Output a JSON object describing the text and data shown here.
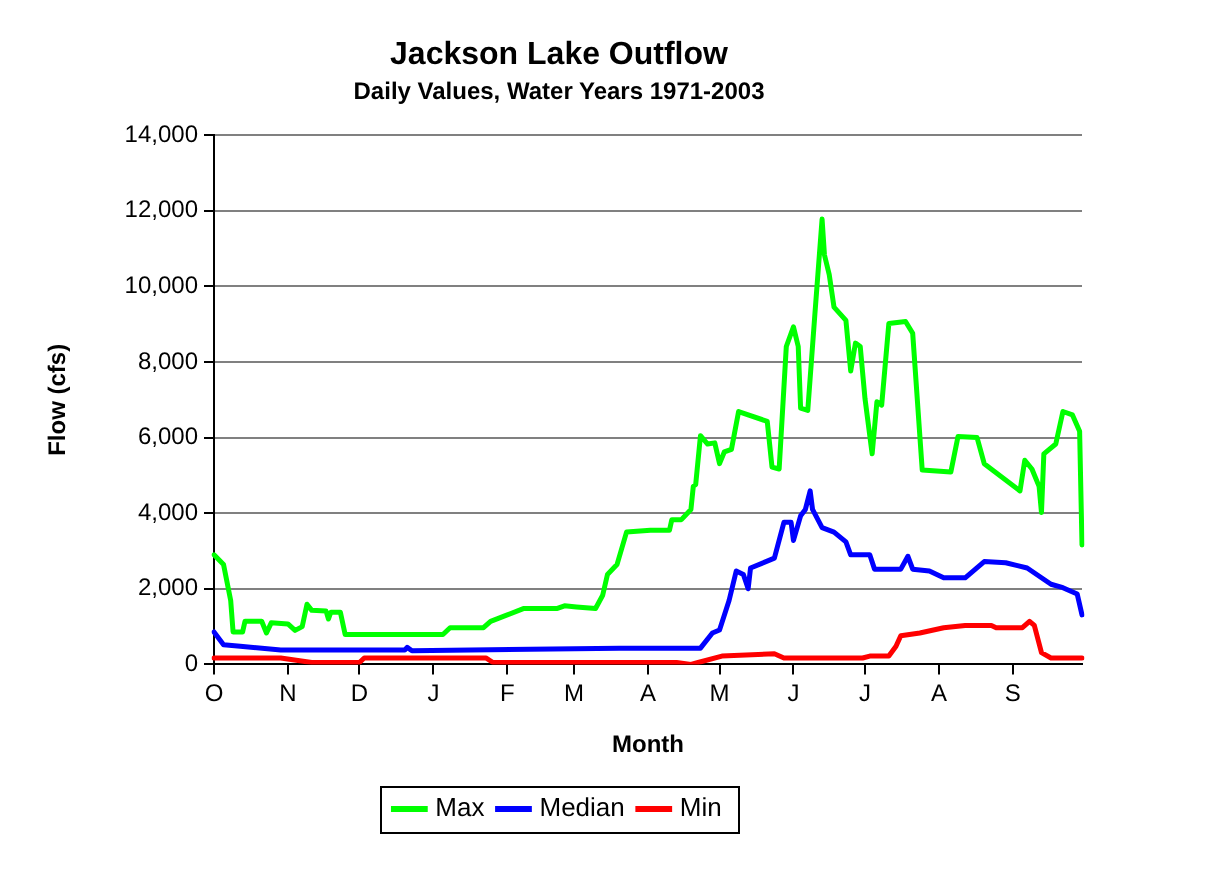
{
  "chart_data": {
    "type": "line",
    "title": "Jackson Lake Outflow",
    "subtitle": "Daily Values, Water Years 1971-2003",
    "xlabel": "Month",
    "ylabel": "Flow (cfs)",
    "categories": [
      "O",
      null,
      null,
      null,
      null,
      null,
      null,
      null,
      null,
      null,
      null,
      null,
      null,
      null,
      null,
      null,
      null,
      null,
      null,
      null,
      null,
      null,
      null,
      null,
      null,
      null,
      null,
      null,
      null,
      null,
      null,
      "N",
      null,
      null,
      null,
      null,
      null,
      null,
      null,
      null,
      null,
      null,
      null,
      null,
      null,
      null,
      null,
      null,
      null,
      null,
      null,
      null,
      null,
      null,
      null,
      null,
      null,
      null,
      null,
      null,
      null,
      "D",
      null,
      null,
      null,
      null,
      null,
      null,
      null,
      null,
      null,
      null,
      null,
      null,
      null,
      null,
      null,
      null,
      null,
      null,
      null,
      null,
      null,
      null,
      null,
      null,
      null,
      null,
      null,
      null,
      null,
      null,
      "J",
      null,
      null,
      null,
      null,
      null,
      null,
      null,
      null,
      null,
      null,
      null,
      null,
      null,
      null,
      null,
      null,
      null,
      null,
      null,
      null,
      null,
      null,
      null,
      null,
      null,
      null,
      null,
      null,
      null,
      null,
      "F",
      null,
      null,
      null,
      null,
      null,
      null,
      null,
      null,
      null,
      null,
      null,
      null,
      null,
      null,
      null,
      null,
      null,
      null,
      null,
      null,
      null,
      null,
      null,
      null,
      null,
      null,
      null,
      "M",
      null,
      null,
      null,
      null,
      null,
      null,
      null,
      null,
      null,
      null,
      null,
      null,
      null,
      null,
      null,
      null,
      null,
      null,
      null,
      null,
      null,
      null,
      null,
      null,
      null,
      null,
      null,
      null,
      null,
      null,
      "A",
      null,
      null,
      null,
      null,
      null,
      null,
      null,
      null,
      null,
      null,
      null,
      null,
      null,
      null,
      null,
      null,
      null,
      null,
      null,
      null,
      null,
      null,
      null,
      null,
      null,
      null,
      null,
      null,
      null,
      "M",
      null,
      null,
      null,
      null,
      null,
      null,
      null,
      null,
      null,
      null,
      null,
      null,
      null,
      null,
      null,
      null,
      null,
      null,
      null,
      null,
      null,
      null,
      null,
      null,
      null,
      null,
      null,
      null,
      null,
      null,
      "J",
      null,
      null,
      null,
      null,
      null,
      null,
      null,
      null,
      null,
      null,
      null,
      null,
      null,
      null,
      null,
      null,
      null,
      null,
      null,
      null,
      null,
      null,
      null,
      null,
      null,
      null,
      null,
      null,
      null,
      "J",
      null,
      null,
      null,
      null,
      null,
      null,
      null,
      null,
      null,
      null,
      null,
      null,
      null,
      null,
      null,
      null,
      null,
      null,
      null,
      null,
      null,
      null,
      null,
      null,
      null,
      null,
      null,
      null,
      null,
      null,
      "A",
      null,
      null,
      null,
      null,
      null,
      null,
      null,
      null,
      null,
      null,
      null,
      null,
      null,
      null,
      null,
      null,
      null,
      null,
      null,
      null,
      null,
      null,
      null,
      null,
      null,
      null,
      null,
      null,
      null,
      null,
      "S",
      null,
      null,
      null,
      null,
      null,
      null,
      null,
      null,
      null,
      null,
      null,
      null,
      null,
      null,
      null,
      null,
      null,
      null,
      null,
      null,
      null,
      null,
      null,
      null,
      null,
      null,
      null,
      null,
      null
    ],
    "ylim": [
      0,
      14000
    ],
    "yticks": [
      {
        "value": 0,
        "label": "0"
      },
      {
        "value": 2000,
        "label": "2,000"
      },
      {
        "value": 4000,
        "label": "4,000"
      },
      {
        "value": 6000,
        "label": "6,000"
      },
      {
        "value": 8000,
        "label": "8,000"
      },
      {
        "value": 10000,
        "label": "10,000"
      },
      {
        "value": 12000,
        "label": "12,000"
      },
      {
        "value": 14000,
        "label": "14,000"
      }
    ],
    "grid": "y",
    "legend": "bottom",
    "marker": "none",
    "line_style": "solid",
    "series": [
      {
        "name": "Max",
        "color": "#00ff00",
        "values": [
          2900,
          null,
          null,
          null,
          2640,
          null,
          null,
          1690,
          860,
          null,
          null,
          null,
          860,
          1140,
          null,
          null,
          null,
          null,
          null,
          null,
          1140,
          null,
          830,
          null,
          1100,
          null,
          null,
          null,
          null,
          null,
          null,
          1070,
          null,
          null,
          900,
          null,
          null,
          1000,
          null,
          1590,
          null,
          1430,
          null,
          null,
          null,
          null,
          null,
          1410,
          1200,
          1380,
          null,
          null,
          null,
          1380,
          null,
          790,
          null,
          null,
          null,
          null,
          null,
          null,
          null,
          null,
          null,
          null,
          null,
          null,
          null,
          null,
          null,
          null,
          null,
          null,
          null,
          null,
          null,
          null,
          null,
          null,
          null,
          null,
          null,
          null,
          null,
          null,
          null,
          null,
          null,
          null,
          null,
          null,
          null,
          null,
          null,
          null,
          790,
          null,
          null,
          970,
          null,
          null,
          null,
          null,
          null,
          null,
          null,
          null,
          null,
          null,
          null,
          null,
          null,
          970,
          null,
          null,
          1140,
          null,
          null,
          null,
          null,
          null,
          null,
          1310,
          null,
          null,
          null,
          null,
          null,
          null,
          1480,
          null,
          null,
          null,
          null,
          null,
          null,
          null,
          null,
          null,
          null,
          null,
          null,
          null,
          1480,
          null,
          null,
          1550,
          null,
          null,
          null,
          null,
          1520,
          null,
          null,
          null,
          null,
          null,
          null,
          null,
          1480,
          null,
          null,
          1830,
          null,
          2380,
          null,
          null,
          null,
          2640,
          null,
          null,
          null,
          3500,
          null,
          null,
          null,
          null,
          null,
          null,
          null,
          null,
          null,
          3550,
          null,
          null,
          null,
          null,
          null,
          null,
          null,
          3550,
          3830,
          null,
          null,
          null,
          3830,
          null,
          null,
          null,
          4100,
          4710,
          4760,
          null,
          6050,
          null,
          null,
          5830,
          null,
          null,
          5860,
          null,
          5310,
          null,
          5620,
          null,
          null,
          5690,
          null,
          null,
          6690,
          null,
          null,
          null,
          null,
          null,
          null,
          null,
          null,
          null,
          null,
          null,
          6430,
          null,
          5220,
          null,
          null,
          5170,
          null,
          null,
          8410,
          null,
          null,
          8930,
          null,
          8410,
          6780,
          null,
          null,
          6720,
          null,
          null,
          9280,
          null,
          null,
          11780,
          10830,
          null,
          10310,
          null,
          9450,
          null,
          null,
          null,
          null,
          9100,
          null,
          7760,
          null,
          8500,
          null,
          8410,
          null,
          7030,
          null,
          null,
          5570,
          null,
          6950,
          null,
          6860,
          null,
          null,
          9020,
          null,
          null,
          null,
          null,
          null,
          null,
          9070,
          null,
          null,
          8760,
          null,
          null,
          null,
          5140,
          null,
          null,
          null,
          null,
          null,
          null,
          null,
          null,
          null,
          null,
          null,
          5090,
          null,
          null,
          6030,
          null,
          null,
          null,
          null,
          null,
          null,
          null,
          6000,
          null,
          null,
          5310,
          null,
          null,
          null,
          null,
          null,
          null,
          null,
          null,
          null,
          null,
          null,
          null,
          null,
          null,
          4590,
          null,
          5400,
          null,
          null,
          5170,
          null,
          null,
          4710,
          4020,
          5570,
          null,
          null,
          null,
          null,
          5830,
          null,
          null,
          6690,
          null,
          null,
          null,
          6600,
          null,
          null,
          6170,
          3160
        ]
      },
      {
        "name": "Median",
        "color": "#0000ff",
        "values": [
          860,
          null,
          null,
          null,
          520,
          null,
          null,
          null,
          null,
          null,
          null,
          480,
          null,
          null,
          null,
          null,
          null,
          null,
          null,
          null,
          null,
          null,
          null,
          null,
          null,
          null,
          null,
          null,
          380,
          null,
          null,
          null,
          null,
          null,
          null,
          null,
          null,
          null,
          null,
          null,
          null,
          null,
          null,
          null,
          null,
          null,
          null,
          null,
          null,
          null,
          null,
          null,
          null,
          null,
          null,
          null,
          null,
          null,
          null,
          null,
          null,
          null,
          null,
          null,
          null,
          null,
          null,
          null,
          null,
          null,
          null,
          null,
          null,
          null,
          null,
          null,
          null,
          null,
          null,
          null,
          380,
          450,
          null,
          360,
          null,
          null,
          null,
          null,
          null,
          null,
          null,
          null,
          null,
          null,
          null,
          null,
          null,
          null,
          null,
          null,
          null,
          null,
          null,
          null,
          null,
          null,
          null,
          null,
          null,
          null,
          null,
          null,
          null,
          null,
          null,
          null,
          null,
          null,
          null,
          null,
          null,
          null,
          null,
          null,
          null,
          null,
          null,
          null,
          null,
          null,
          null,
          null,
          null,
          null,
          null,
          null,
          null,
          null,
          null,
          null,
          null,
          null,
          null,
          null,
          null,
          null,
          null,
          null,
          null,
          null,
          null,
          null,
          null,
          null,
          null,
          null,
          null,
          null,
          null,
          null,
          null,
          null,
          null,
          null,
          null,
          null,
          null,
          null,
          null,
          null,
          430,
          null,
          null,
          null,
          null,
          null,
          null,
          null,
          null,
          null,
          null,
          null,
          null,
          null,
          null,
          null,
          null,
          null,
          null,
          null,
          null,
          null,
          null,
          null,
          null,
          null,
          null,
          null,
          null,
          null,
          null,
          null,
          null,
          null,
          430,
          null,
          null,
          null,
          null,
          830,
          null,
          null,
          910,
          null,
          null,
          null,
          1690,
          null,
          null,
          2470,
          null,
          null,
          2380,
          null,
          2000,
          2550,
          null,
          null,
          null,
          null,
          null,
          null,
          null,
          null,
          null,
          2810,
          null,
          null,
          null,
          3760,
          null,
          null,
          3760,
          3280,
          null,
          null,
          3930,
          null,
          4100,
          null,
          4590,
          4100,
          null,
          null,
          null,
          3620,
          null,
          null,
          null,
          null,
          3500,
          null,
          null,
          null,
          null,
          3240,
          null,
          2900,
          null,
          null,
          null,
          null,
          null,
          null,
          null,
          2900,
          null,
          2520,
          null,
          null,
          null,
          null,
          null,
          null,
          null,
          null,
          null,
          null,
          2520,
          null,
          null,
          2860,
          null,
          2520,
          null,
          null,
          null,
          null,
          null,
          null,
          2470,
          null,
          null,
          null,
          null,
          null,
          2290,
          null,
          null,
          null,
          null,
          null,
          null,
          null,
          null,
          2290,
          null,
          null,
          null,
          null,
          null,
          null,
          null,
          2720,
          null,
          null,
          null,
          null,
          null,
          null,
          null,
          null,
          2690,
          null,
          null,
          null,
          null,
          null,
          null,
          null,
          null,
          2550,
          null,
          null,
          null,
          null,
          null,
          null,
          null,
          null,
          null,
          2120,
          null,
          null,
          null,
          null,
          2030,
          null,
          null,
          null,
          null,
          null,
          1860,
          null,
          1310
        ]
      },
      {
        "name": "Min",
        "color": "#ff0000",
        "values": [
          170,
          null,
          null,
          null,
          null,
          null,
          null,
          null,
          null,
          null,
          null,
          null,
          null,
          null,
          null,
          null,
          null,
          null,
          null,
          null,
          null,
          null,
          null,
          null,
          null,
          null,
          null,
          null,
          170,
          null,
          null,
          null,
          null,
          null,
          null,
          null,
          null,
          null,
          null,
          null,
          null,
          50,
          null,
          null,
          null,
          null,
          null,
          null,
          null,
          null,
          null,
          null,
          null,
          null,
          null,
          null,
          null,
          null,
          null,
          null,
          null,
          50,
          null,
          170,
          null,
          null,
          null,
          null,
          null,
          null,
          null,
          null,
          null,
          null,
          null,
          null,
          null,
          null,
          null,
          null,
          null,
          null,
          null,
          null,
          null,
          null,
          null,
          null,
          null,
          null,
          null,
          null,
          null,
          null,
          null,
          null,
          null,
          null,
          null,
          null,
          null,
          null,
          null,
          null,
          null,
          null,
          null,
          null,
          null,
          null,
          null,
          null,
          null,
          null,
          170,
          null,
          null,
          50,
          null,
          null,
          null,
          null,
          null,
          null,
          null,
          null,
          null,
          null,
          null,
          null,
          null,
          null,
          null,
          null,
          null,
          null,
          null,
          null,
          null,
          null,
          null,
          null,
          null,
          null,
          null,
          null,
          null,
          null,
          null,
          null,
          null,
          null,
          null,
          null,
          null,
          null,
          null,
          null,
          null,
          null,
          null,
          null,
          null,
          null,
          null,
          null,
          null,
          null,
          null,
          null,
          null,
          null,
          null,
          null,
          null,
          null,
          null,
          null,
          null,
          null,
          null,
          null,
          null,
          null,
          null,
          null,
          null,
          null,
          null,
          null,
          null,
          null,
          null,
          null,
          50,
          null,
          null,
          null,
          null,
          null,
          0,
          null,
          null,
          50,
          null,
          null,
          null,
          null,
          null,
          null,
          null,
          null,
          null,
          220,
          null,
          null,
          null,
          null,
          null,
          null,
          null,
          null,
          null,
          null,
          null,
          null,
          null,
          null,
          null,
          null,
          null,
          null,
          null,
          null,
          null,
          280,
          null,
          null,
          null,
          170,
          null,
          null,
          null,
          null,
          null,
          null,
          null,
          null,
          null,
          170,
          null,
          null,
          null,
          null,
          null,
          null,
          null,
          null,
          null,
          null,
          null,
          null,
          null,
          null,
          null,
          null,
          null,
          null,
          null,
          null,
          null,
          null,
          170,
          null,
          null,
          220,
          null,
          null,
          null,
          null,
          null,
          null,
          null,
          220,
          null,
          null,
          480,
          null,
          760,
          null,
          null,
          null,
          null,
          null,
          null,
          null,
          830,
          null,
          null,
          null,
          null,
          null,
          null,
          null,
          null,
          null,
          970,
          null,
          null,
          null,
          null,
          null,
          null,
          null,
          null,
          1030,
          null,
          null,
          null,
          null,
          null,
          null,
          null,
          null,
          null,
          null,
          1030,
          null,
          970,
          null,
          null,
          null,
          null,
          null,
          null,
          null,
          null,
          null,
          null,
          970,
          null,
          null,
          1140,
          null,
          1030,
          null,
          null,
          310,
          null,
          null,
          null,
          170,
          null,
          null,
          null,
          null,
          null,
          null,
          null,
          null,
          null,
          null,
          null,
          null,
          170
        ]
      }
    ]
  }
}
